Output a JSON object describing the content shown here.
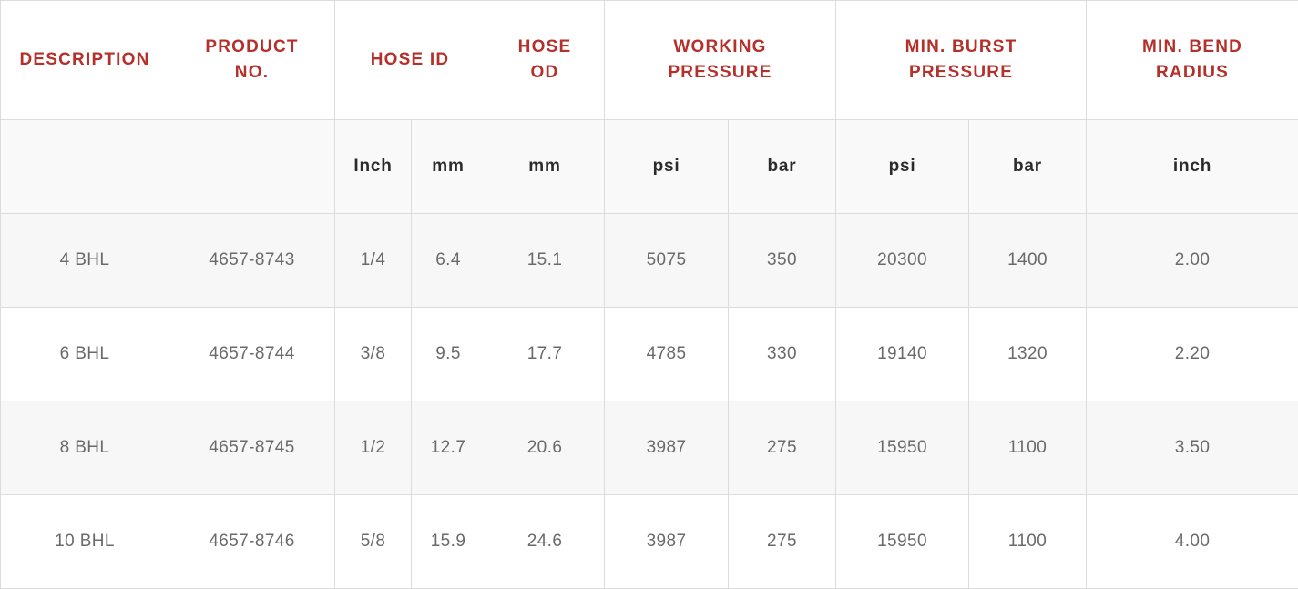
{
  "headers": {
    "description": [
      "DESCRIPTION"
    ],
    "product_no": [
      "PRODUCT",
      "NO."
    ],
    "hose_id": [
      "HOSE ID"
    ],
    "hose_od": [
      "HOSE",
      "OD"
    ],
    "working_pressure": [
      "WORKING",
      "PRESSURE"
    ],
    "min_burst_pressure": [
      "MIN. BURST",
      "PRESSURE"
    ],
    "min_bend_radius": [
      "MIN. BEND",
      "RADIUS"
    ]
  },
  "units": {
    "description": "",
    "product_no": "",
    "hose_id_inch": "Inch",
    "hose_id_mm": "mm",
    "hose_od_mm": "mm",
    "working_psi": "psi",
    "working_bar": "bar",
    "burst_psi": "psi",
    "burst_bar": "bar",
    "bend_inch": "inch"
  },
  "rows": [
    {
      "description": "4 BHL",
      "product_no": "4657-8743",
      "hose_id_inch": "1/4",
      "hose_id_mm": "6.4",
      "hose_od_mm": "15.1",
      "working_psi": "5075",
      "working_bar": "350",
      "burst_psi": "20300",
      "burst_bar": "1400",
      "bend_inch": "2.00"
    },
    {
      "description": "6 BHL",
      "product_no": "4657-8744",
      "hose_id_inch": "3/8",
      "hose_id_mm": "9.5",
      "hose_od_mm": "17.7",
      "working_psi": "4785",
      "working_bar": "330",
      "burst_psi": "19140",
      "burst_bar": "1320",
      "bend_inch": "2.20"
    },
    {
      "description": "8 BHL",
      "product_no": "4657-8745",
      "hose_id_inch": "1/2",
      "hose_id_mm": "12.7",
      "hose_od_mm": "20.6",
      "working_psi": "3987",
      "working_bar": "275",
      "burst_psi": "15950",
      "burst_bar": "1100",
      "bend_inch": "3.50"
    },
    {
      "description": "10 BHL",
      "product_no": "4657-8746",
      "hose_id_inch": "5/8",
      "hose_id_mm": "15.9",
      "hose_od_mm": "24.6",
      "working_psi": "3987",
      "working_bar": "275",
      "burst_psi": "15950",
      "burst_bar": "1100",
      "bend_inch": "4.00"
    }
  ],
  "colors": {
    "header_text": "#b5302a",
    "unit_text": "#2b2b2b",
    "cell_text": "#6a6a6a",
    "border": "#dcdcdc",
    "stripe": "#f7f7f7"
  }
}
